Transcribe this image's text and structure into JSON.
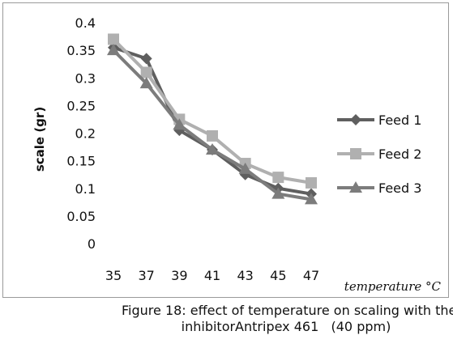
{
  "chart_data": {
    "type": "line",
    "title": "",
    "xlabel": "temperature °C",
    "ylabel": "scale (gr)",
    "categories": [
      "35",
      "37",
      "39",
      "41",
      "43",
      "45",
      "47"
    ],
    "yticks": [
      "0",
      "0.05",
      "0.1",
      "0.15",
      "0.2",
      "0.25",
      "0.3",
      "0.35",
      "0.4"
    ],
    "ylim": [
      0,
      0.4
    ],
    "grid": false,
    "legend_position": "right",
    "series": [
      {
        "name": "Feed 1",
        "marker": "diamond",
        "color": "#5f5f5f",
        "values": [
          0.355,
          0.335,
          0.205,
          0.17,
          0.125,
          0.1,
          0.09
        ]
      },
      {
        "name": "Feed 2",
        "marker": "square",
        "color": "#b0b0b0",
        "values": [
          0.37,
          0.31,
          0.225,
          0.195,
          0.145,
          0.12,
          0.11
        ]
      },
      {
        "name": "Feed 3",
        "marker": "triangle",
        "color": "#7c7c7c",
        "values": [
          0.35,
          0.29,
          0.215,
          0.17,
          0.135,
          0.09,
          0.08
        ]
      }
    ]
  },
  "caption": {
    "line1": "Figure 18: effect of temperature on scaling with the",
    "line2": "inhibitorAntripex 461   (40 ppm)"
  }
}
